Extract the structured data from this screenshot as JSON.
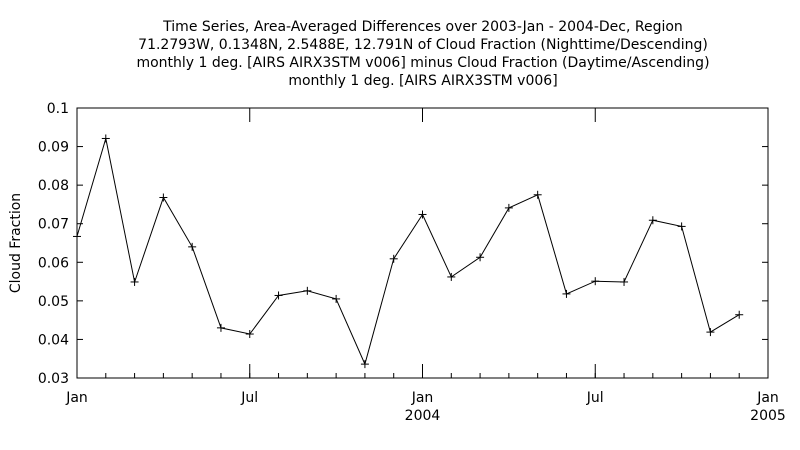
{
  "chart_data": {
    "type": "line",
    "title_lines": [
      "Time Series, Area-Averaged Differences over 2003-Jan - 2004-Dec, Region",
      "71.2793W, 0.1348N, 2.5488E, 12.791N  of Cloud Fraction (Nighttime/Descending)",
      "monthly 1 deg. [AIRS AIRX3STM v006] minus Cloud Fraction (Daytime/Ascending)",
      "monthly 1 deg. [AIRS AIRX3STM v006]"
    ],
    "ylabel": "Cloud Fraction",
    "ylim": [
      0.03,
      0.1
    ],
    "yticks": [
      "0.03",
      "0.04",
      "0.05",
      "0.06",
      "0.07",
      "0.08",
      "0.09",
      "0.1"
    ],
    "xlim": [
      "2003-01",
      "2005-01"
    ],
    "xticks": [
      {
        "label": "Jan",
        "date": "2003-01"
      },
      {
        "label": "Jul",
        "date": "2003-07"
      },
      {
        "label": "Jan",
        "date": "2004-01",
        "year": "2004"
      },
      {
        "label": "Jul",
        "date": "2004-07"
      },
      {
        "label": "Jan",
        "date": "2005-01",
        "year": "2005"
      }
    ],
    "grid": false,
    "series": [
      {
        "x": [
          "2003-01",
          "2003-02",
          "2003-03",
          "2003-04",
          "2003-05",
          "2003-06",
          "2003-07",
          "2003-08",
          "2003-09",
          "2003-10",
          "2003-11",
          "2003-12",
          "2004-01",
          "2004-02",
          "2004-03",
          "2004-04",
          "2004-05",
          "2004-06",
          "2004-07",
          "2004-08",
          "2004-09",
          "2004-10",
          "2004-11",
          "2004-12"
        ],
        "values": [
          0.0667,
          0.0921,
          0.0549,
          0.0768,
          0.064,
          0.043,
          0.0414,
          0.0514,
          0.0526,
          0.0505,
          0.0336,
          0.0609,
          0.0724,
          0.0562,
          0.0613,
          0.0741,
          0.0775,
          0.0518,
          0.0551,
          0.0549,
          0.0709,
          0.0693,
          0.0419,
          0.0464
        ]
      }
    ]
  }
}
